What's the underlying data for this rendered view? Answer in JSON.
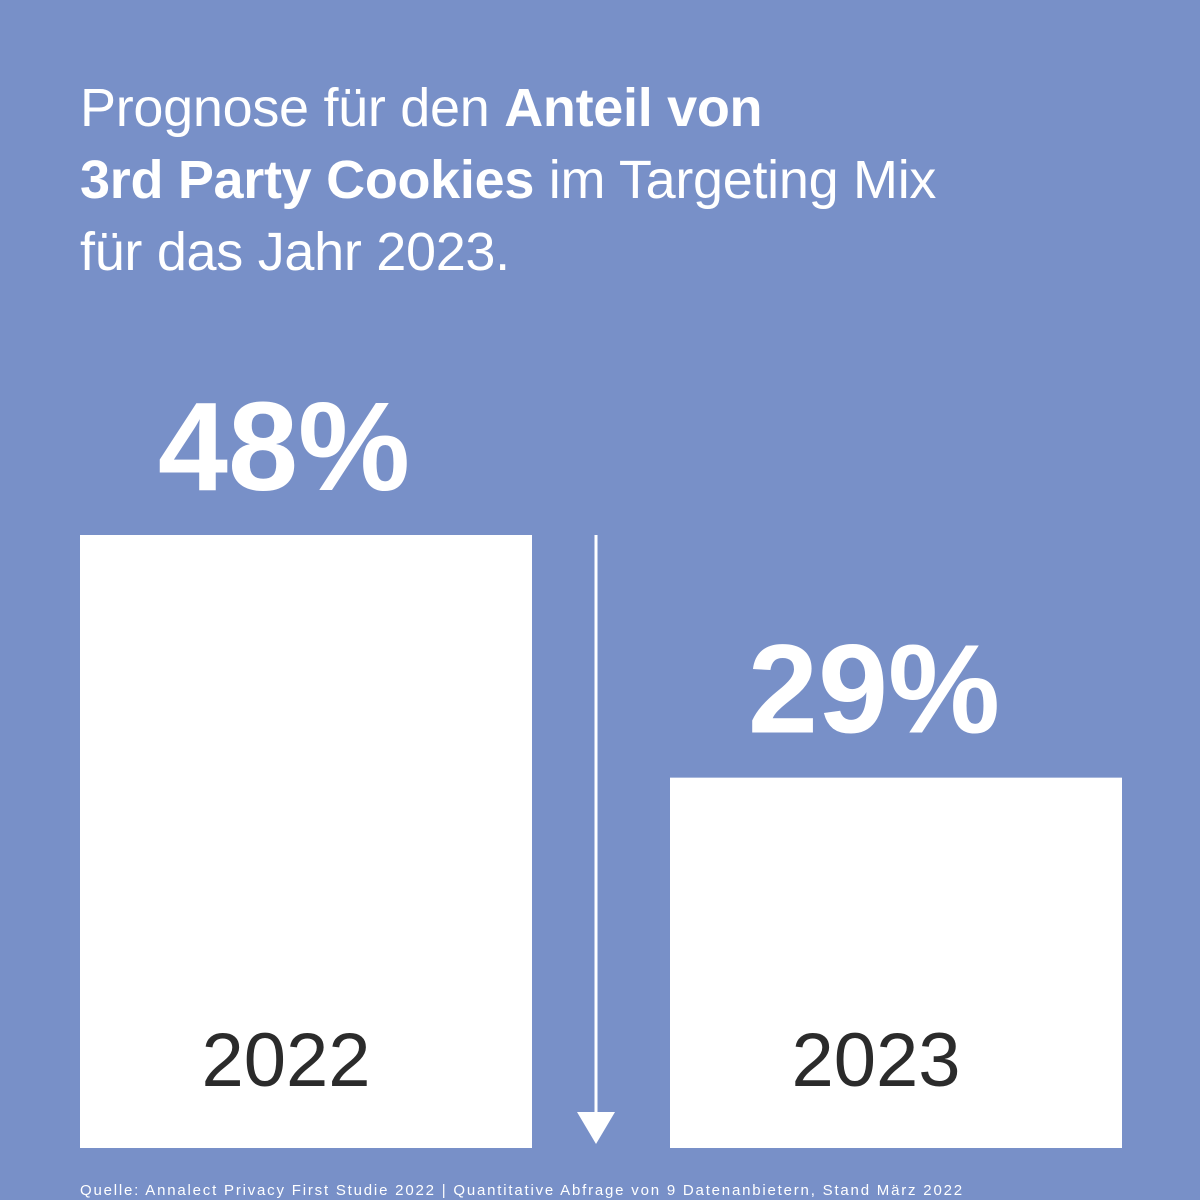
{
  "title": {
    "line1_regular": "Prognose für den ",
    "line1_bold": "Anteil von",
    "line2_bold": "3rd Party Cookies",
    "line2_regular": " im Targeting Mix",
    "line3_regular": "für das Jahr 2023."
  },
  "chart_data": {
    "type": "bar",
    "categories": [
      "2022",
      "2023"
    ],
    "values": [
      48,
      29
    ],
    "value_labels": [
      "48%",
      "29%"
    ],
    "unit": "%",
    "ylim": [
      0,
      48
    ],
    "grid": false,
    "trend_arrow": "down"
  },
  "source": "Quelle: Annalect Privacy First Studie 2022 | Quantitative Abfrage von 9 Datenanbietern, Stand März 2022",
  "colors": {
    "background": "#7890c8",
    "bar": "#ffffff",
    "value_text": "#ffffff",
    "category_text": "#2b2b2b",
    "arrow": "#ffffff"
  }
}
